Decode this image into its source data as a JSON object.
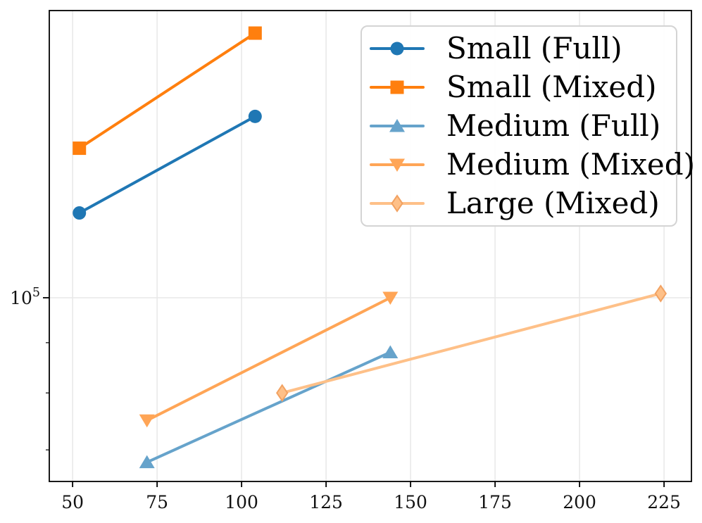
{
  "chart_data": {
    "type": "line",
    "title": "",
    "xlabel": "",
    "ylabel": "",
    "x_ticks": [
      50,
      75,
      100,
      125,
      150,
      175,
      200,
      225
    ],
    "x_tick_labels": [
      "50",
      "75",
      "100",
      "125",
      "150",
      "175",
      "200",
      "225"
    ],
    "xlim": [
      43.1,
      233.1
    ],
    "y_scale": "log",
    "ylim": [
      65000,
      196100
    ],
    "y_major_ticks": [
      100000
    ],
    "y_axis": {
      "major_label_base": "10",
      "major_label_exponent": "5"
    },
    "y_minor_ticks": [
      70000,
      80000,
      90000
    ],
    "grid": true,
    "legend_position": "upper right",
    "series": [
      {
        "name": "Small (Full)",
        "marker": "circle",
        "color": "#1f77b4",
        "x": [
          52,
          104
        ],
        "y": [
          122000,
          153000
        ]
      },
      {
        "name": "Small (Mixed)",
        "marker": "square",
        "color": "#ff7f0e",
        "x": [
          52,
          104
        ],
        "y": [
          142000,
          186000
        ]
      },
      {
        "name": "Medium (Full)",
        "marker": "triangle-up",
        "color": "#66a3cb",
        "x": [
          72,
          144
        ],
        "y": [
          68000,
          88000
        ]
      },
      {
        "name": "Medium (Mixed)",
        "marker": "triangle-down",
        "color": "#ffa556",
        "x": [
          72,
          144
        ],
        "y": [
          75000,
          100000
        ]
      },
      {
        "name": "Large (Mixed)",
        "marker": "thin-diamond",
        "color": "#fec088",
        "edge": "#f2a262",
        "x": [
          112,
          224
        ],
        "y": [
          80000,
          101000
        ]
      }
    ],
    "colors": {
      "grid": "#e8e8e8",
      "spine": "#000000",
      "tick_label": "#111111",
      "legend_border": "#d4d4d4",
      "background": "#ffffff"
    }
  }
}
